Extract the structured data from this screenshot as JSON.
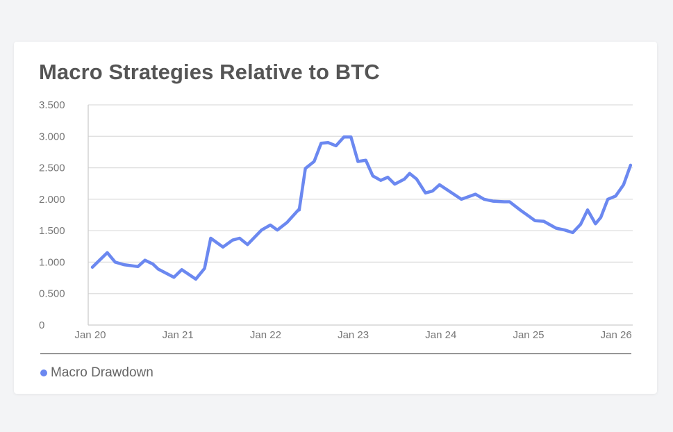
{
  "card": {
    "title": "Macro Strategies Relative to BTC"
  },
  "colors": {
    "series": "#6b88f0",
    "grid": "#dddddd",
    "axis": "#cccccc",
    "text": "#777777",
    "title": "#555555"
  },
  "legend": {
    "items": [
      {
        "label": "Macro Drawdown",
        "color": "#6b88f0"
      }
    ]
  },
  "chart_data": {
    "type": "line",
    "title": "Macro Strategies Relative to BTC",
    "xlabel": "",
    "ylabel": "",
    "ylim": [
      0,
      3.5
    ],
    "yticks": [
      "3.500",
      "3.000",
      "2.500",
      "2.000",
      "1.500",
      "1.000",
      "0.500",
      "0"
    ],
    "ytick_values": [
      3.5,
      3.0,
      2.5,
      2.0,
      1.5,
      1.0,
      0.5,
      0
    ],
    "xticks": [
      "Jan 20",
      "Jan 21",
      "Jan 22",
      "Jan 23",
      "Jan 24",
      "Jan 25",
      "Jan 26"
    ],
    "xtick_positions": [
      0,
      1,
      2,
      3,
      4,
      5,
      6
    ],
    "x_unit": "years since Jan 20",
    "grid": true,
    "legend_position": "bottom-left",
    "series": [
      {
        "name": "Macro Drawdown",
        "color": "#6b88f0",
        "x": [
          0.0,
          0.17,
          0.26,
          0.36,
          0.52,
          0.6,
          0.69,
          0.75,
          0.93,
          1.02,
          1.18,
          1.28,
          1.35,
          1.49,
          1.6,
          1.68,
          1.77,
          1.93,
          2.03,
          2.11,
          2.22,
          2.35,
          2.36,
          2.43,
          2.53,
          2.61,
          2.69,
          2.78,
          2.87,
          2.95,
          3.03,
          3.12,
          3.2,
          3.29,
          3.37,
          3.45,
          3.56,
          3.62,
          3.7,
          3.8,
          3.88,
          3.96,
          4.07,
          4.21,
          4.37,
          4.47,
          4.57,
          4.7,
          4.76,
          4.88,
          4.98,
          5.05,
          5.15,
          5.29,
          5.39,
          5.48,
          5.57,
          5.65,
          5.74,
          5.8,
          5.88,
          5.97,
          6.06,
          6.14
        ],
        "values": [
          0.92,
          1.15,
          1.0,
          0.96,
          0.93,
          1.03,
          0.97,
          0.89,
          0.76,
          0.88,
          0.73,
          0.9,
          1.38,
          1.24,
          1.35,
          1.38,
          1.28,
          1.51,
          1.59,
          1.51,
          1.63,
          1.83,
          1.83,
          2.49,
          2.6,
          2.89,
          2.9,
          2.85,
          2.99,
          2.99,
          2.6,
          2.62,
          2.37,
          2.3,
          2.35,
          2.24,
          2.32,
          2.41,
          2.32,
          2.1,
          2.13,
          2.23,
          2.13,
          2.0,
          2.08,
          2.0,
          1.97,
          1.96,
          1.96,
          1.83,
          1.73,
          1.66,
          1.65,
          1.54,
          1.51,
          1.47,
          1.6,
          1.83,
          1.61,
          1.71,
          2.0,
          2.05,
          2.23,
          2.54
        ]
      }
    ]
  }
}
